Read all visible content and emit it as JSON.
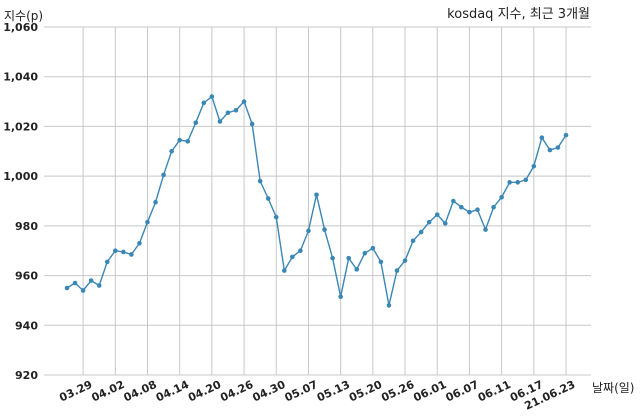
{
  "chart_data": {
    "type": "line",
    "title": "kosdaq 지수, 최근 3개월",
    "xlabel": "날짜(일)",
    "ylabel": "지수(p)",
    "ylim": [
      920,
      1060
    ],
    "yticks": [
      920,
      940,
      960,
      980,
      1000,
      1020,
      1040,
      1060
    ],
    "ytick_labels": [
      "920",
      "940",
      "960",
      "980",
      "1,000",
      "1,020",
      "1,040",
      "1,060"
    ],
    "xtick_labels": [
      "03.29",
      "04.02",
      "04.08",
      "04.14",
      "04.20",
      "04.26",
      "04.30",
      "05.07",
      "05.13",
      "05.20",
      "05.26",
      "06.01",
      "06.07",
      "06.11",
      "06.17",
      "21.06.23"
    ],
    "xtick_index": [
      2,
      6,
      10,
      14,
      18,
      22,
      26,
      30,
      34,
      38,
      42,
      46,
      50,
      54,
      58,
      62
    ],
    "grid": true,
    "series": [
      {
        "values": [
          955.0,
          957.0,
          954.0,
          958.0,
          956.0,
          965.5,
          970.0,
          969.5,
          968.5,
          973.0,
          981.5,
          989.5,
          1000.5,
          1010.0,
          1014.5,
          1014.0,
          1021.5,
          1029.5,
          1032.0,
          1022.0,
          1025.5,
          1026.5,
          1030.0,
          1021.0,
          998.0,
          991.0,
          983.5,
          962.0,
          967.5,
          970.0,
          978.0,
          992.5,
          978.5,
          967.0,
          951.5,
          967.0,
          962.5,
          969.0,
          971.0,
          965.5,
          948.0,
          962.0,
          966.0,
          974.0,
          977.5,
          981.5,
          984.5,
          981.0,
          990.0,
          987.5,
          985.5,
          986.5,
          978.5,
          987.5,
          991.5,
          997.5,
          997.5,
          998.5,
          1004.0,
          1015.5,
          1010.5,
          1011.5,
          1016.5
        ]
      }
    ]
  }
}
